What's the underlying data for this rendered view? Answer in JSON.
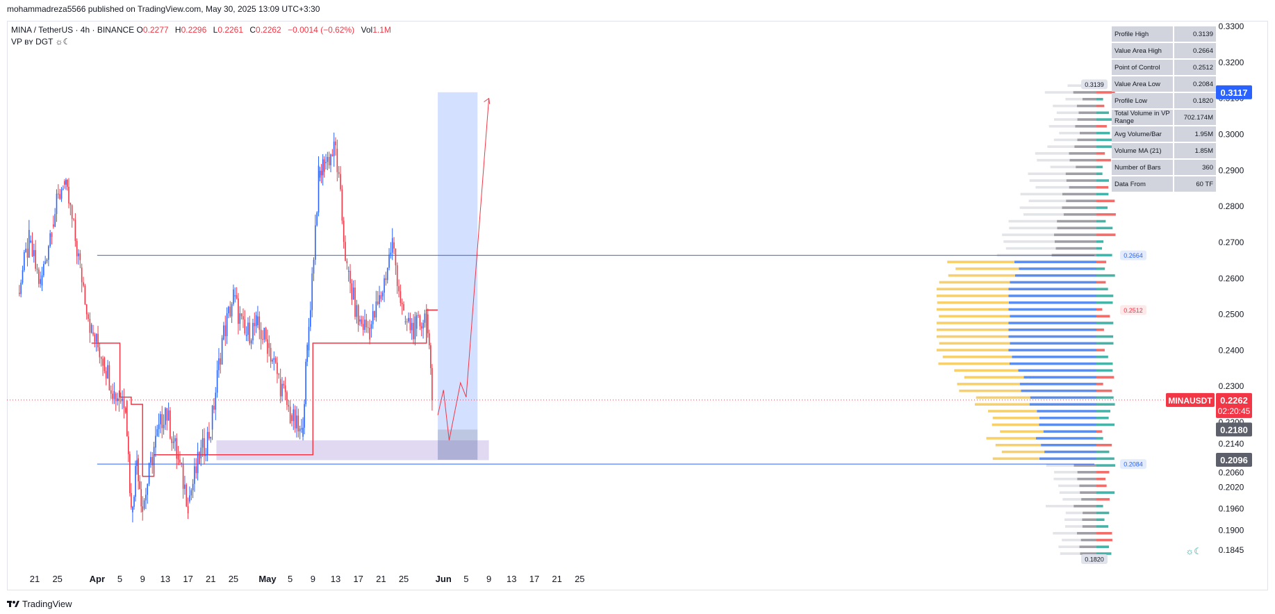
{
  "header": {
    "publisher": "mohammadreza5566 published on TradingView.com, May 30, 2025 13:09 UTC+3:30"
  },
  "legend": {
    "symbol": "MINA / TetherUS · 4h · BINANCE",
    "o_label": "O",
    "o_value": "0.2277",
    "h_label": "H",
    "h_value": "0.2296",
    "l_label": "L",
    "l_value": "0.2261",
    "c_label": "C",
    "c_value": "0.2262",
    "change": "−0.0014 (−0.62%)",
    "vol_label": "Vol",
    "vol_value": "1.1M",
    "indicator": "VP ʙʏ DGT ☼☾"
  },
  "stats": [
    {
      "key": "Profile High",
      "value": "0.3139"
    },
    {
      "key": "Value Area High",
      "value": "0.2664"
    },
    {
      "key": "Point of Control",
      "value": "0.2512"
    },
    {
      "key": "Value Area Low",
      "value": "0.2084"
    },
    {
      "key": "Profile Low",
      "value": "0.1820"
    },
    {
      "key": "Total Volume in VP Range",
      "value": "702.174M"
    },
    {
      "key": "Avg Volume/Bar",
      "value": "1.95M"
    },
    {
      "key": "Volume MA (21)",
      "value": "1.85M"
    },
    {
      "key": "Number of Bars",
      "value": "360"
    },
    {
      "key": "Data From",
      "value": "60 TF"
    }
  ],
  "footer": {
    "brand": "TradingView"
  },
  "colors": {
    "up": "#2962ff",
    "down": "#f23645",
    "vah_line": "#2962ff",
    "poc": "#f23645",
    "profile_blue": "#5b8def",
    "profile_yellow": "#f7d06b"
  },
  "chart_data": {
    "type": "candlestick",
    "symbol": "MINAUSDT",
    "timeframe": "4h",
    "x_ticks": [
      "21",
      "25",
      "Apr",
      "5",
      "9",
      "13",
      "17",
      "21",
      "25",
      "May",
      "5",
      "9",
      "13",
      "17",
      "21",
      "25",
      "Jun",
      "5",
      "9",
      "13",
      "17",
      "21",
      "25"
    ],
    "y_ticks": [
      "0.3300",
      "0.3200",
      "0.3100",
      "0.3000",
      "0.2900",
      "0.2800",
      "0.2700",
      "0.2600",
      "0.2500",
      "0.2400",
      "0.2300",
      "0.2200",
      "0.2140",
      "0.2060",
      "0.2020",
      "0.1960",
      "0.1900",
      "0.1845"
    ],
    "last_price": {
      "label": "MINAUSDT",
      "value": "0.2262",
      "countdown": "02:20:45"
    },
    "price_tags": [
      "0.3117",
      "0.2180",
      "0.2096"
    ],
    "profile_labels": {
      "high": "0.3139",
      "vah": "0.2664",
      "poc": "0.2512",
      "val": "0.2084",
      "low": "0.1820"
    },
    "price_path": [
      {
        "date": "Mar 18",
        "price": 0.256
      },
      {
        "date": "Mar 20",
        "price": 0.27
      },
      {
        "date": "Mar 22",
        "price": 0.258
      },
      {
        "date": "Mar 24",
        "price": 0.275
      },
      {
        "date": "Mar 26",
        "price": 0.287
      },
      {
        "date": "Mar 27",
        "price": 0.281
      },
      {
        "date": "Mar 29",
        "price": 0.263
      },
      {
        "date": "Mar 31",
        "price": 0.245
      },
      {
        "date": "Apr 2",
        "price": 0.238
      },
      {
        "date": "Apr 4",
        "price": 0.228
      },
      {
        "date": "Apr 6",
        "price": 0.226
      },
      {
        "date": "Apr 7",
        "price": 0.195
      },
      {
        "date": "Apr 8",
        "price": 0.21
      },
      {
        "date": "Apr 9",
        "price": 0.196
      },
      {
        "date": "Apr 11",
        "price": 0.213
      },
      {
        "date": "Apr 13",
        "price": 0.224
      },
      {
        "date": "Apr 15",
        "price": 0.211
      },
      {
        "date": "Apr 17",
        "price": 0.198
      },
      {
        "date": "Apr 19",
        "price": 0.21
      },
      {
        "date": "Apr 21",
        "price": 0.218
      },
      {
        "date": "Apr 23",
        "price": 0.243
      },
      {
        "date": "Apr 25",
        "price": 0.255
      },
      {
        "date": "Apr 27",
        "price": 0.244
      },
      {
        "date": "Apr 29",
        "price": 0.247
      },
      {
        "date": "May 1",
        "price": 0.242
      },
      {
        "date": "May 3",
        "price": 0.232
      },
      {
        "date": "May 5",
        "price": 0.222
      },
      {
        "date": "May 7",
        "price": 0.216
      },
      {
        "date": "May 8",
        "price": 0.24
      },
      {
        "date": "May 10",
        "price": 0.288
      },
      {
        "date": "May 11",
        "price": 0.292
      },
      {
        "date": "May 13",
        "price": 0.296
      },
      {
        "date": "May 15",
        "price": 0.262
      },
      {
        "date": "May 17",
        "price": 0.248
      },
      {
        "date": "May 19",
        "price": 0.246
      },
      {
        "date": "May 21",
        "price": 0.255
      },
      {
        "date": "May 23",
        "price": 0.27
      },
      {
        "date": "May 25",
        "price": 0.248
      },
      {
        "date": "May 27",
        "price": 0.246
      },
      {
        "date": "May 29",
        "price": 0.25
      },
      {
        "date": "May 30",
        "price": 0.2262
      }
    ],
    "vwap_steps": [
      {
        "from": "Mar 31",
        "to": "Apr 5",
        "price": 0.242
      },
      {
        "from": "Apr 5",
        "to": "Apr 7",
        "price": 0.227
      },
      {
        "from": "Apr 7",
        "to": "Apr 9",
        "price": 0.225
      },
      {
        "from": "Apr 9",
        "to": "Apr 11",
        "price": 0.205
      },
      {
        "from": "Apr 11",
        "to": "May 9",
        "price": 0.211
      },
      {
        "from": "May 9",
        "to": "May 29",
        "price": 0.242
      },
      {
        "from": "May 29",
        "to": "May 31",
        "price": 0.2512
      }
    ],
    "horizontal_lines": {
      "vah": 0.2664,
      "val": 0.2084
    },
    "projection_path": [
      {
        "date": "May 31",
        "price": 0.222
      },
      {
        "date": "Jun 1",
        "price": 0.229
      },
      {
        "date": "Jun 2",
        "price": 0.215
      },
      {
        "date": "Jun 4",
        "price": 0.231
      },
      {
        "date": "Jun 5",
        "price": 0.227
      },
      {
        "date": "Jun 9",
        "price": 0.31
      }
    ],
    "grid": false
  }
}
